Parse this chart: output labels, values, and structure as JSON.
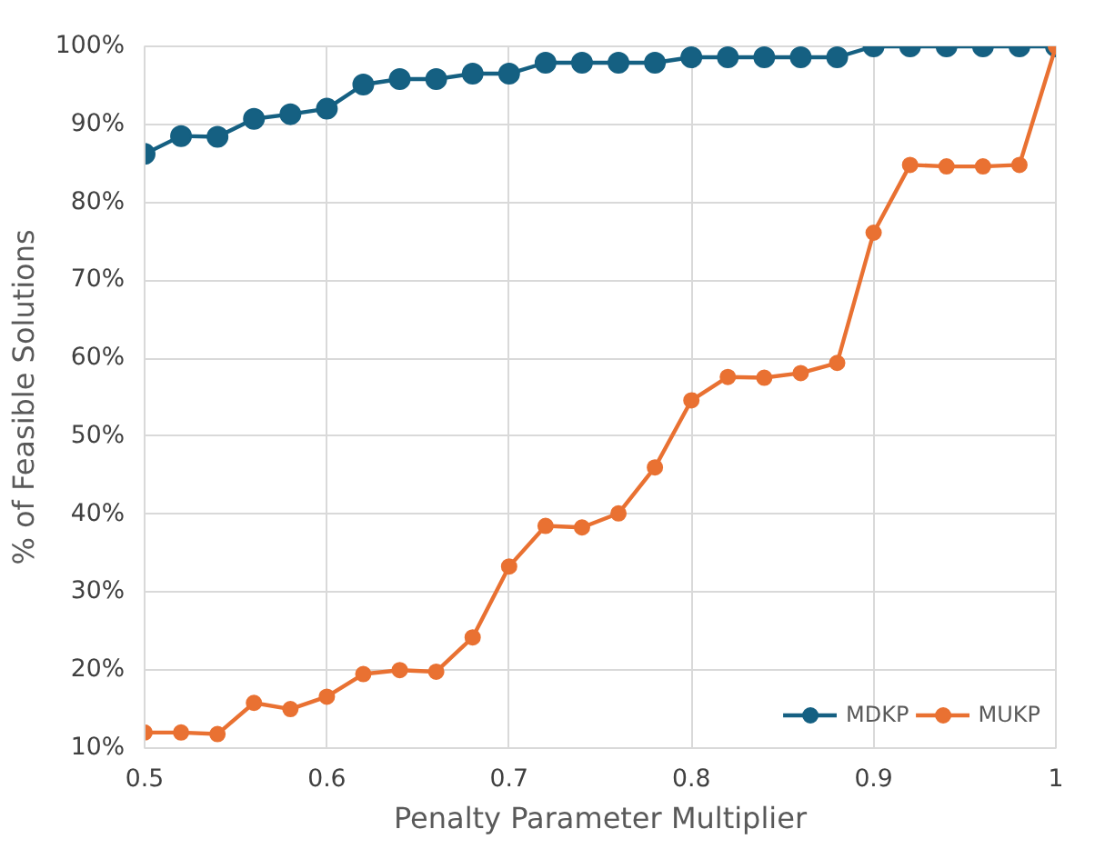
{
  "chart_data": {
    "type": "line",
    "xlabel": "Penalty Parameter Multiplier",
    "ylabel": "% of Feasible Solutions",
    "x": [
      0.5,
      0.52,
      0.54,
      0.56,
      0.58,
      0.6,
      0.62,
      0.64,
      0.66,
      0.68,
      0.7,
      0.72,
      0.74,
      0.76,
      0.78,
      0.8,
      0.82,
      0.84,
      0.86,
      0.88,
      0.9,
      0.92,
      0.94,
      0.96,
      0.98,
      1.0
    ],
    "series": [
      {
        "name": "MDKP",
        "color": "#156082",
        "values": [
          86.2,
          88.5,
          88.4,
          90.7,
          91.3,
          92,
          95.1,
          95.8,
          95.8,
          96.5,
          96.5,
          97.9,
          97.9,
          97.9,
          97.9,
          98.6,
          98.6,
          98.6,
          98.6,
          98.6,
          100,
          100,
          100,
          100,
          100,
          100
        ]
      },
      {
        "name": "MUKP",
        "color": "#e97132",
        "values": [
          12,
          12,
          11.8,
          15.8,
          15,
          16.6,
          19.5,
          20,
          19.8,
          24.2,
          33.3,
          38.5,
          38.3,
          40.1,
          46,
          54.6,
          57.6,
          57.5,
          58.1,
          59.4,
          76.1,
          84.8,
          84.6,
          84.6,
          84.8,
          100
        ]
      }
    ],
    "xlim": [
      0.5,
      1.0
    ],
    "xticks": [
      0.5,
      0.6,
      0.7,
      0.8,
      0.9,
      1
    ],
    "ylim": [
      10,
      100
    ],
    "yticks": [
      {
        "value": 10,
        "label": "10%"
      },
      {
        "value": 20,
        "label": "20%"
      },
      {
        "value": 30,
        "label": "30%"
      },
      {
        "value": 40,
        "label": "40%"
      },
      {
        "value": 50,
        "label": "50%"
      },
      {
        "value": 60,
        "label": "60%"
      },
      {
        "value": 70,
        "label": "70%"
      },
      {
        "value": 80,
        "label": "80%"
      },
      {
        "value": 90,
        "label": "90%"
      },
      {
        "value": 100,
        "label": "100%"
      }
    ],
    "grid": true,
    "legend": "bottom right",
    "marker": "circle",
    "line_style": "solid"
  }
}
